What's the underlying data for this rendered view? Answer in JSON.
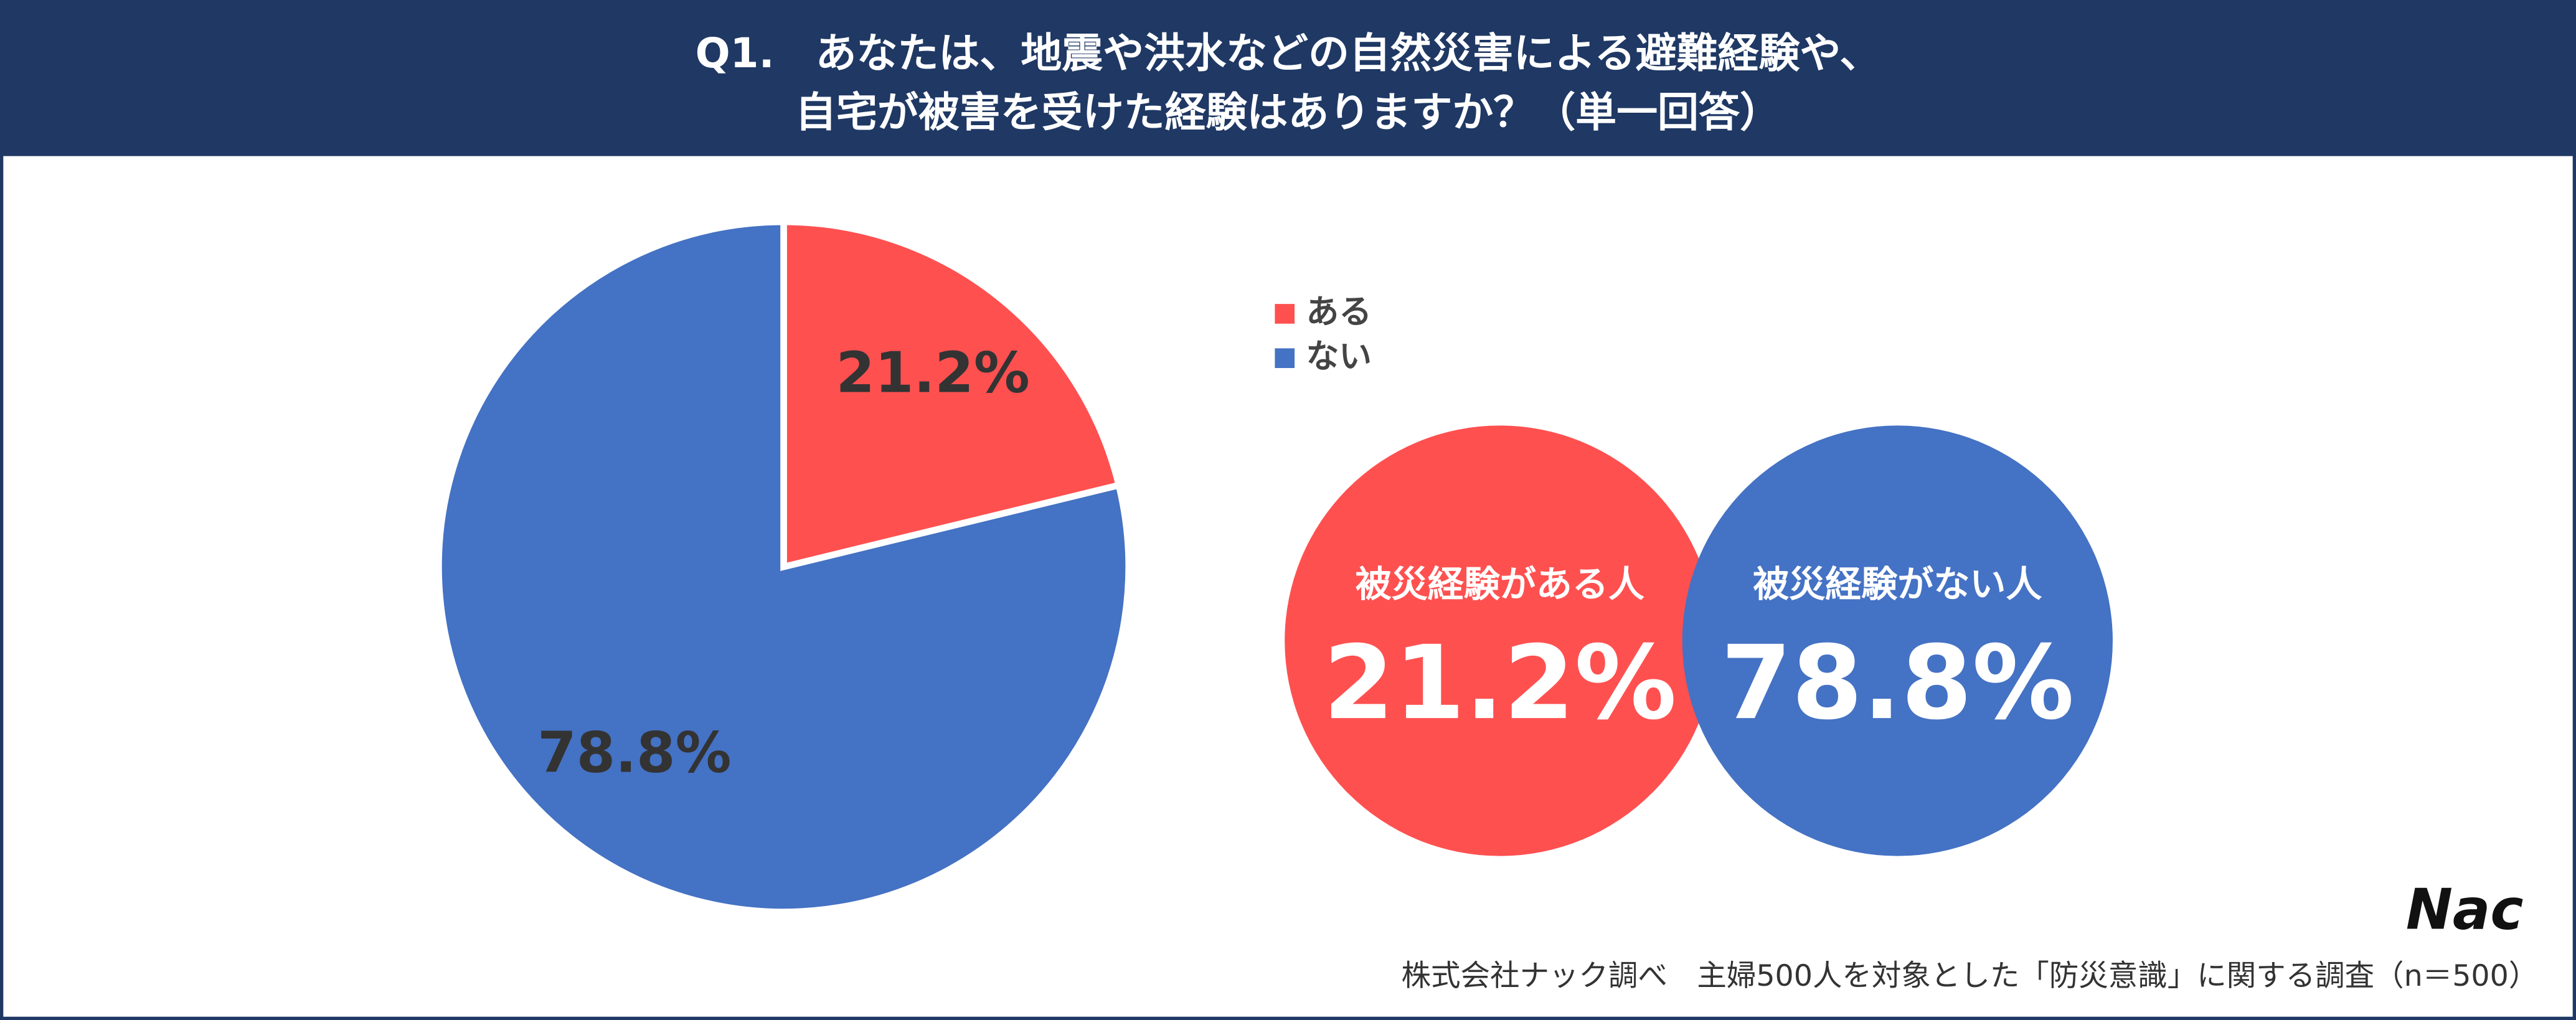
{
  "chart_data": {
    "type": "pie",
    "title": [
      "Q1.　あなたは、地震や洪水などの自然災害による避難経験や、",
      "自宅が被害を受けた経験はありますか？（単一回答）"
    ],
    "categories": [
      "ある",
      "ない"
    ],
    "values": [
      21.2,
      78.8
    ],
    "value_labels": [
      "21.2%",
      "78.8%"
    ],
    "colors": [
      "#ff5050",
      "#4472c4"
    ],
    "legend": "right"
  },
  "callouts": [
    "被災経験がある人",
    "被災経験がない人"
  ],
  "logo": "Nac",
  "source": "株式会社ナック調べ　主婦500人を対象とした「防災意識」に関する調査（n＝500）"
}
